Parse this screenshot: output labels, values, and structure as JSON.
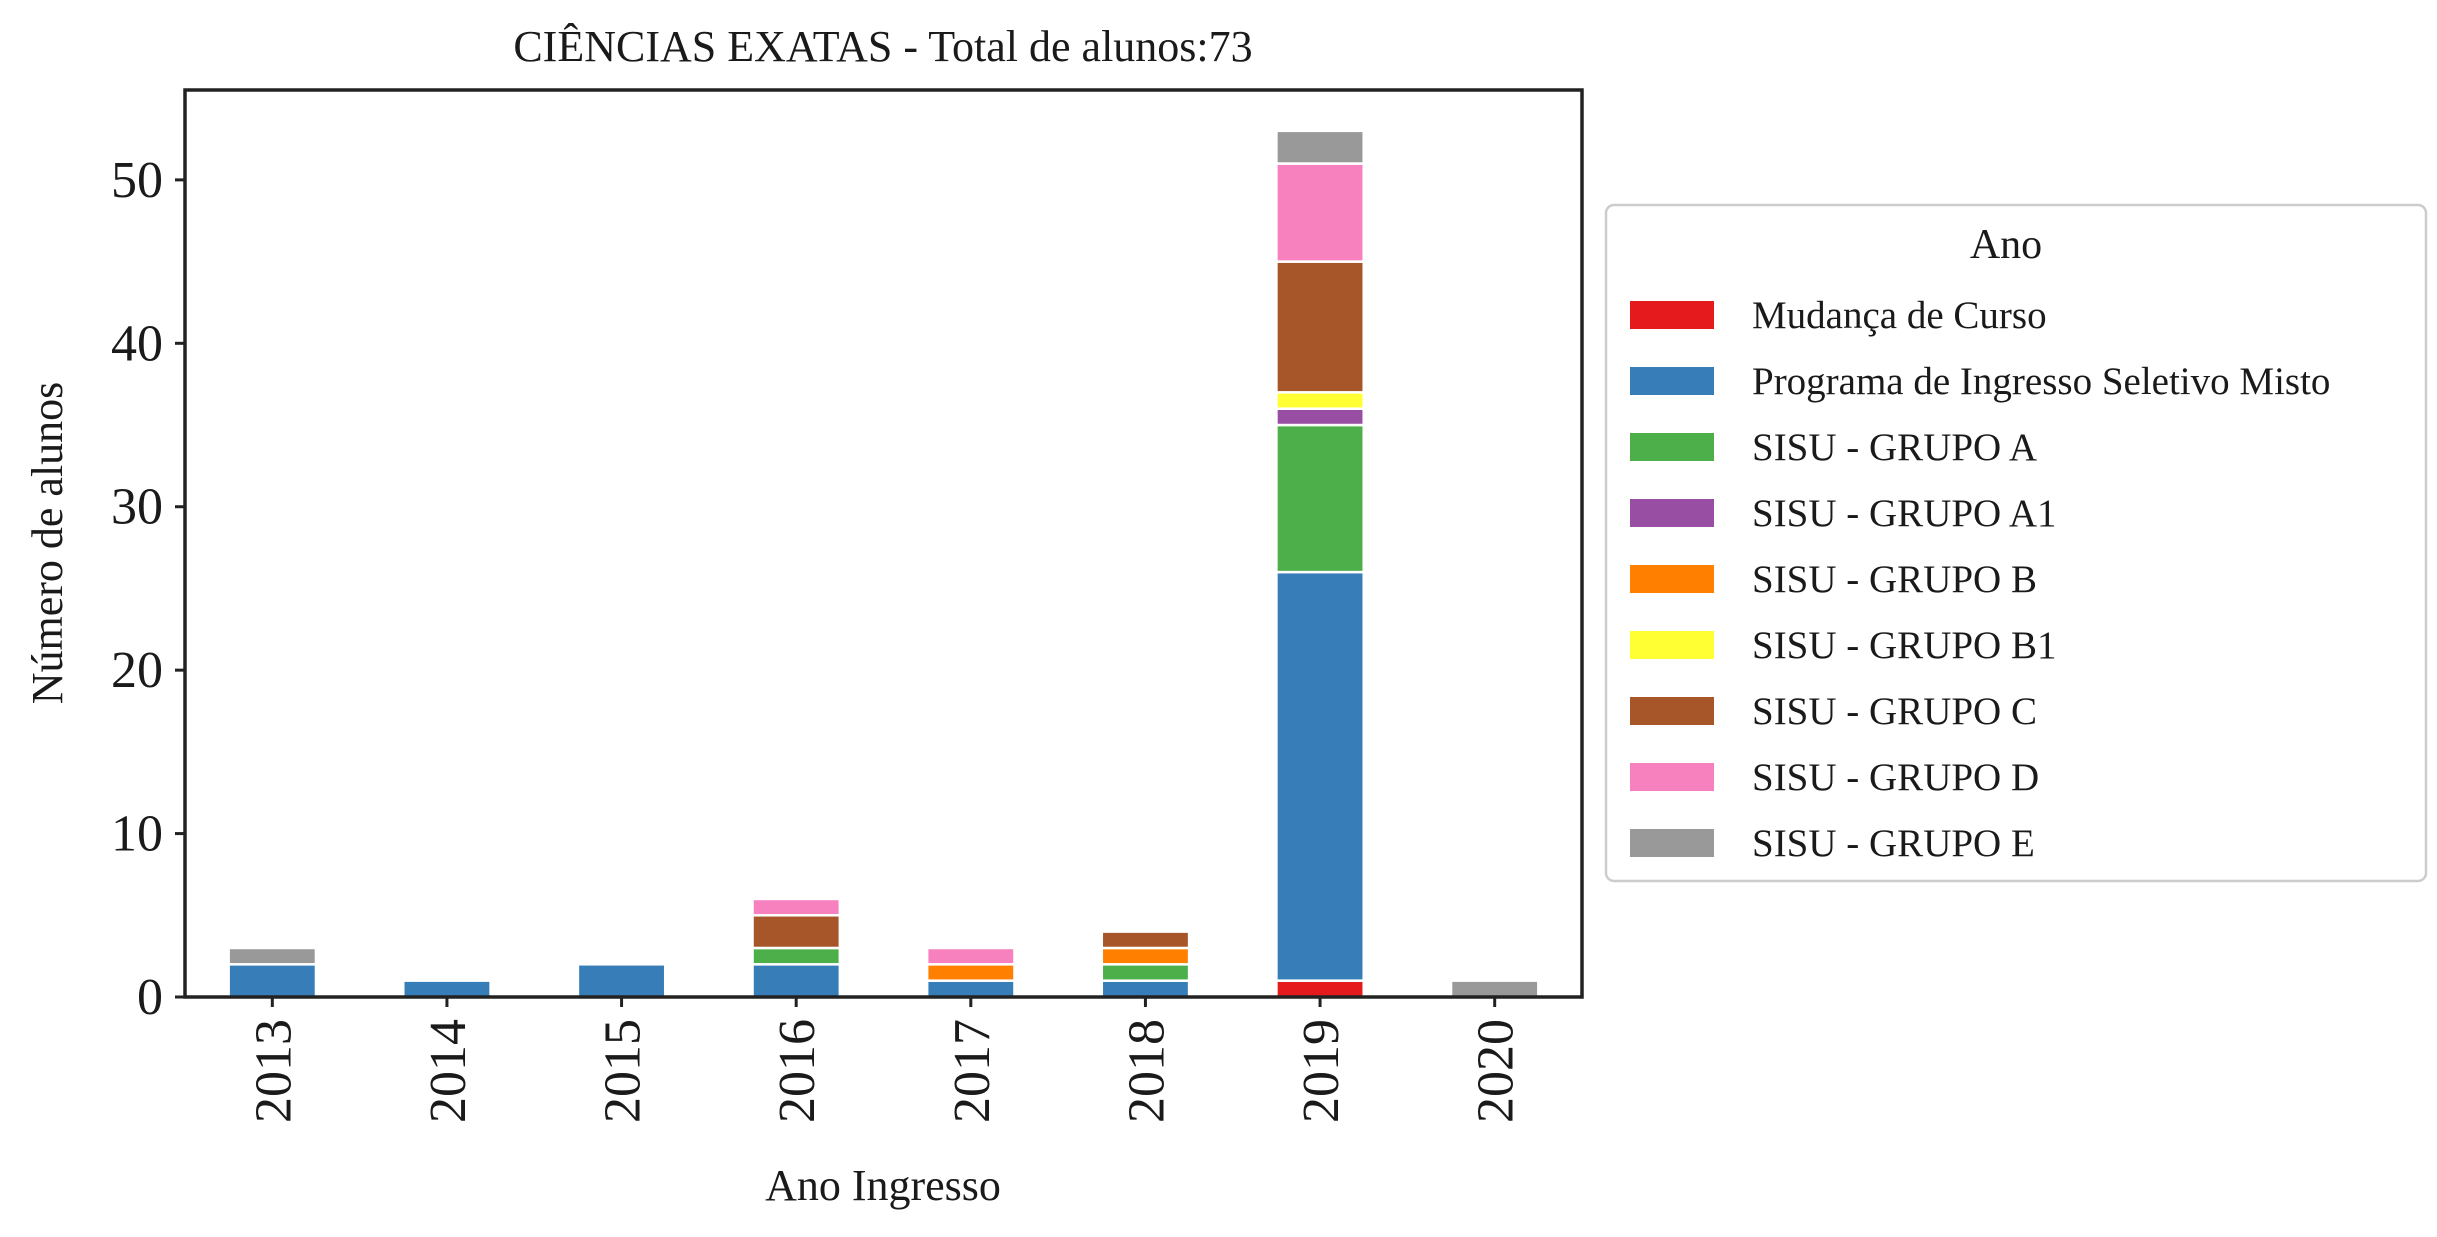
{
  "chart_data": {
    "type": "bar",
    "stacked": true,
    "title": "CIÊNCIAS EXATAS - Total de alunos:73",
    "xlabel": "Ano Ingresso",
    "ylabel": "Número de alunos",
    "categories": [
      "2013",
      "2014",
      "2015",
      "2016",
      "2017",
      "2018",
      "2019",
      "2020"
    ],
    "yticks": [
      "0",
      "10",
      "20",
      "30",
      "40",
      "50"
    ],
    "ylim": [
      0,
      55.5
    ],
    "grid": false,
    "legend": {
      "title": "Ano",
      "placement": "right"
    },
    "series": [
      {
        "name": "Mudança de Curso",
        "color": "#e41a1c",
        "values": [
          0,
          0,
          0,
          0,
          0,
          0,
          1,
          0
        ]
      },
      {
        "name": "Programa de Ingresso Seletivo Misto",
        "color": "#377eb8",
        "values": [
          2,
          1,
          2,
          2,
          1,
          1,
          25,
          0
        ]
      },
      {
        "name": "SISU - GRUPO A",
        "color": "#4daf4a",
        "values": [
          0,
          0,
          0,
          1,
          0,
          1,
          9,
          0
        ]
      },
      {
        "name": "SISU - GRUPO A1",
        "color": "#984ea3",
        "values": [
          0,
          0,
          0,
          0,
          0,
          0,
          1,
          0
        ]
      },
      {
        "name": "SISU - GRUPO B",
        "color": "#ff7f00",
        "values": [
          0,
          0,
          0,
          0,
          1,
          1,
          0,
          0
        ]
      },
      {
        "name": "SISU - GRUPO B1",
        "color": "#ffff33",
        "values": [
          0,
          0,
          0,
          0,
          0,
          0,
          1,
          0
        ]
      },
      {
        "name": "SISU - GRUPO C",
        "color": "#a65628",
        "values": [
          0,
          0,
          0,
          2,
          0,
          1,
          8,
          0
        ]
      },
      {
        "name": "SISU - GRUPO D",
        "color": "#f781bf",
        "values": [
          0,
          0,
          0,
          1,
          1,
          0,
          6,
          0
        ]
      },
      {
        "name": "SISU - GRUPO E",
        "color": "#999999",
        "values": [
          1,
          0,
          0,
          0,
          0,
          0,
          2,
          1
        ]
      }
    ]
  }
}
